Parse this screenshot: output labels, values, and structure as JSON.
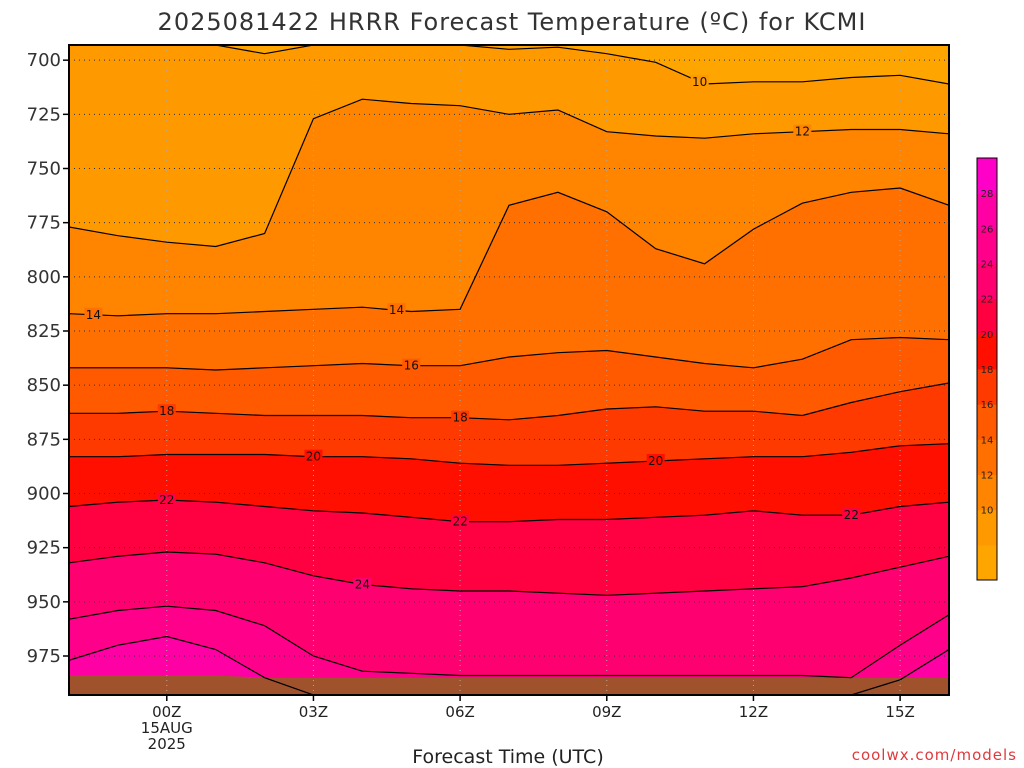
{
  "chart_data": {
    "type": "heatmap",
    "title": "2025081422 HRRR Forecast Temperature (ºC) for KCMI",
    "xlabel": "Forecast Time (UTC)",
    "ylabel": "",
    "credit": "coolwx.com/models",
    "x_ticks": [
      {
        "hour": 0,
        "lines": [
          "00Z",
          "15AUG",
          "2025"
        ]
      },
      {
        "hour": 3,
        "lines": [
          "03Z"
        ]
      },
      {
        "hour": 6,
        "lines": [
          "06Z"
        ]
      },
      {
        "hour": 9,
        "lines": [
          "09Z"
        ]
      },
      {
        "hour": 12,
        "lines": [
          "12Z"
        ]
      },
      {
        "hour": 15,
        "lines": [
          "15Z"
        ]
      }
    ],
    "xlim": [
      -2,
      16
    ],
    "ylim": [
      693,
      993
    ],
    "y_ticks": [
      700,
      725,
      750,
      775,
      800,
      825,
      850,
      875,
      900,
      925,
      950,
      975
    ],
    "grid": true,
    "colorbar": {
      "levels": [
        8,
        10,
        12,
        14,
        16,
        18,
        20,
        22,
        24,
        26,
        28,
        30
      ],
      "labels": [
        10,
        12,
        14,
        16,
        18,
        20,
        22,
        24,
        26,
        28
      ],
      "colors": [
        "#FFA500",
        "#FF9900",
        "#FF8400",
        "#FF7000",
        "#FF5A00",
        "#FF3A00",
        "#FF0F00",
        "#FF0040",
        "#FF0070",
        "#FF008A",
        "#FF00A5",
        "#FF00C8"
      ]
    },
    "hours": [
      -2,
      -1,
      0,
      1,
      2,
      3,
      4,
      5,
      6,
      7,
      8,
      9,
      10,
      11,
      12,
      13,
      14,
      15,
      16
    ],
    "contours": [
      {
        "level": 10,
        "pressure": [
          693,
          693,
          693,
          693,
          697,
          693,
          693,
          693,
          693,
          695,
          694,
          697,
          701,
          711,
          710,
          710,
          708,
          707,
          711
        ]
      },
      {
        "level": 12,
        "pressure": [
          777,
          781,
          784,
          786,
          780,
          727,
          718,
          720,
          721,
          725,
          723,
          733,
          735,
          736,
          734,
          733,
          732,
          732,
          734
        ]
      },
      {
        "level": 14,
        "pressure": [
          817,
          818,
          817,
          817,
          816,
          815,
          814,
          816,
          815,
          767,
          761,
          770,
          787,
          794,
          778,
          766,
          761,
          759,
          767
        ]
      },
      {
        "level": 16,
        "pressure": [
          842,
          842,
          842,
          843,
          842,
          841,
          840,
          841,
          841,
          837,
          835,
          834,
          837,
          840,
          842,
          838,
          829,
          828,
          829
        ]
      },
      {
        "level": 18,
        "pressure": [
          863,
          863,
          862,
          863,
          864,
          864,
          864,
          865,
          865,
          866,
          864,
          861,
          860,
          862,
          862,
          864,
          858,
          853,
          849
        ]
      },
      {
        "level": 20,
        "pressure": [
          883,
          883,
          882,
          882,
          882,
          883,
          883,
          884,
          886,
          887,
          887,
          886,
          885,
          884,
          883,
          883,
          881,
          878,
          877
        ]
      },
      {
        "level": 22,
        "pressure": [
          906,
          904,
          903,
          904,
          906,
          908,
          909,
          911,
          913,
          913,
          912,
          912,
          911,
          910,
          908,
          910,
          910,
          906,
          904
        ]
      },
      {
        "level": 24,
        "pressure": [
          932,
          929,
          927,
          928,
          932,
          938,
          942,
          944,
          945,
          945,
          946,
          947,
          946,
          945,
          944,
          943,
          939,
          934,
          929
        ]
      },
      {
        "level": 26,
        "pressure": [
          958,
          954,
          952,
          954,
          961,
          975,
          982,
          983,
          984,
          984,
          984,
          984,
          984,
          984,
          984,
          984,
          985,
          970,
          956
        ]
      },
      {
        "level": 28,
        "pressure": [
          977,
          970,
          966,
          972,
          985,
          993,
          993,
          993,
          993,
          993,
          993,
          993,
          993,
          993,
          993,
          993,
          993,
          986,
          972
        ]
      }
    ],
    "contour_labels": [
      {
        "level": 10,
        "hour": 10.9
      },
      {
        "level": 12,
        "hour": 13.0
      },
      {
        "level": 14,
        "hour": -1.5
      },
      {
        "level": 14,
        "hour": 4.7
      },
      {
        "level": 16,
        "hour": 5.0
      },
      {
        "level": 18,
        "hour": 0.0
      },
      {
        "level": 18,
        "hour": 6.0
      },
      {
        "level": 20,
        "hour": 3.0
      },
      {
        "level": 20,
        "hour": 10.0
      },
      {
        "level": 22,
        "hour": 0.0
      },
      {
        "level": 22,
        "hour": 6.0
      },
      {
        "level": 22,
        "hour": 14.0
      },
      {
        "level": 24,
        "hour": 4.0
      }
    ],
    "ground": {
      "color": "#A0522D",
      "pressure": [
        984,
        984,
        984,
        984,
        985,
        985,
        985,
        985,
        985,
        985,
        985,
        985,
        985,
        985,
        985,
        985,
        985,
        985,
        985
      ]
    }
  }
}
